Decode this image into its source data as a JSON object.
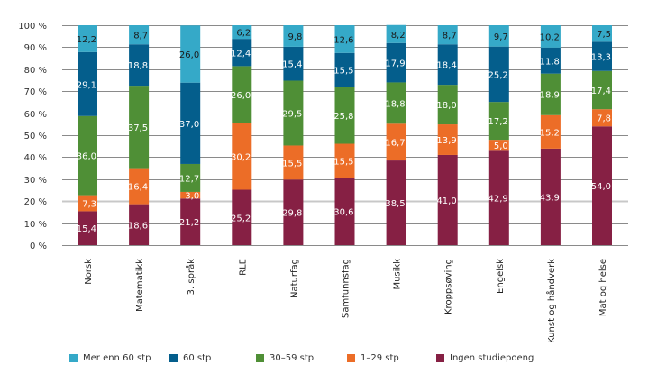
{
  "chart_data": {
    "type": "bar",
    "stacked": true,
    "title": "",
    "xlabel": "",
    "ylabel": "",
    "ylim": [
      0,
      100
    ],
    "yticks": [
      "0 %",
      "10 %",
      "20 %",
      "30 %",
      "40 %",
      "50 %",
      "60 %",
      "70 %",
      "80 %",
      "90 %",
      "100 %"
    ],
    "grid": true,
    "legend_position": "bottom",
    "categories": [
      "Norsk",
      "Matematikk",
      "3. språk",
      "RLE",
      "Naturfag",
      "Samfunnsfag",
      "Musikk",
      "Kroppsøving",
      "Engelsk",
      "Kunst og håndverk",
      "Mat og helse"
    ],
    "series": [
      {
        "name": "Ingen studiepoeng",
        "color": "#862044",
        "label_color": "#ffffff",
        "values": [
          15.4,
          18.6,
          21.2,
          25.2,
          29.8,
          30.6,
          38.5,
          41.0,
          42.9,
          43.9,
          54.0
        ],
        "labels": [
          "15,4",
          "18,6",
          "21,2",
          "25,2",
          "29,8",
          "30,6",
          "38,5",
          "41,0",
          "42,9",
          "43,9",
          "54,0"
        ]
      },
      {
        "name": "1–29 stp",
        "color": "#ec6d27",
        "label_color": "#ffffff",
        "values": [
          7.3,
          16.4,
          3.0,
          30.2,
          15.5,
          15.5,
          16.7,
          13.9,
          5.0,
          15.2,
          7.8
        ],
        "labels": [
          "7,3",
          "16,4",
          "3,0",
          "30,2",
          "15,5",
          "15,5",
          "16,7",
          "13,9",
          "5,0",
          "15,2",
          "7,8"
        ]
      },
      {
        "name": "30–59 stp",
        "color": "#4f8f36",
        "label_color": "#ffffff",
        "values": [
          36.0,
          37.5,
          12.7,
          26.0,
          29.5,
          25.8,
          18.8,
          18.0,
          17.2,
          18.9,
          17.4
        ],
        "labels": [
          "36,0",
          "37,5",
          "12,7",
          "26,0",
          "29,5",
          "25,8",
          "18,8",
          "18,0",
          "17,2",
          "18,9",
          "17,4"
        ]
      },
      {
        "name": "60 stp",
        "color": "#045e8c",
        "label_color": "#ffffff",
        "values": [
          29.1,
          18.8,
          37.0,
          12.4,
          15.4,
          15.5,
          17.9,
          18.4,
          25.2,
          11.8,
          13.3
        ],
        "labels": [
          "29,1",
          "18,8",
          "37,0",
          "12,4",
          "15,4",
          "15,5",
          "17,9",
          "18,4",
          "25,2",
          "11,8",
          "13,3"
        ]
      },
      {
        "name": "Mer enn 60 stp",
        "color": "#35a9c8",
        "label_color": "#1a1a1a",
        "values": [
          12.2,
          8.7,
          26.0,
          6.2,
          9.8,
          12.6,
          8.2,
          8.7,
          9.7,
          10.2,
          7.5
        ],
        "labels": [
          "12,2",
          "8,7",
          "26,0",
          "6,2",
          "9,8",
          "12,6",
          "8,2",
          "8,7",
          "9,7",
          "10,2",
          "7,5"
        ]
      }
    ],
    "legend": [
      {
        "label": "Mer enn 60 stp",
        "color": "#35a9c8"
      },
      {
        "label": "60 stp",
        "color": "#045e8c"
      },
      {
        "label": "30–59 stp",
        "color": "#4f8f36"
      },
      {
        "label": "1–29 stp",
        "color": "#ec6d27"
      },
      {
        "label": "Ingen studiepoeng",
        "color": "#862044"
      }
    ]
  }
}
